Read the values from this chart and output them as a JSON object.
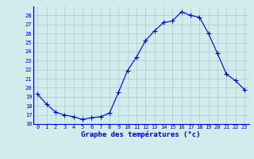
{
  "hours": [
    0,
    1,
    2,
    3,
    4,
    5,
    6,
    7,
    8,
    9,
    10,
    11,
    12,
    13,
    14,
    15,
    16,
    17,
    18,
    19,
    20,
    21,
    22,
    23
  ],
  "temps": [
    19.3,
    18.2,
    17.3,
    17.0,
    16.8,
    16.5,
    16.7,
    16.8,
    17.2,
    19.5,
    21.9,
    23.4,
    25.2,
    26.3,
    27.2,
    27.4,
    28.4,
    28.0,
    27.8,
    26.0,
    23.8,
    21.5,
    20.8,
    19.8
  ],
  "line_color": "#0000cc",
  "bg_color": "#d0ecec",
  "grid_color": "#aacccc",
  "xlabel": "Graphe des températures (°c)",
  "xlabel_color": "#0000cc",
  "tick_color": "#0000cc",
  "ylim": [
    16,
    29
  ],
  "yticks": [
    16,
    17,
    18,
    19,
    20,
    21,
    22,
    23,
    24,
    25,
    26,
    27,
    28
  ],
  "xticks": [
    0,
    1,
    2,
    3,
    4,
    5,
    6,
    7,
    8,
    9,
    10,
    11,
    12,
    13,
    14,
    15,
    16,
    17,
    18,
    19,
    20,
    21,
    22,
    23
  ],
  "marker": "+",
  "markersize": 4,
  "linewidth": 0.8,
  "tick_fontsize": 5,
  "xlabel_fontsize": 6.5
}
